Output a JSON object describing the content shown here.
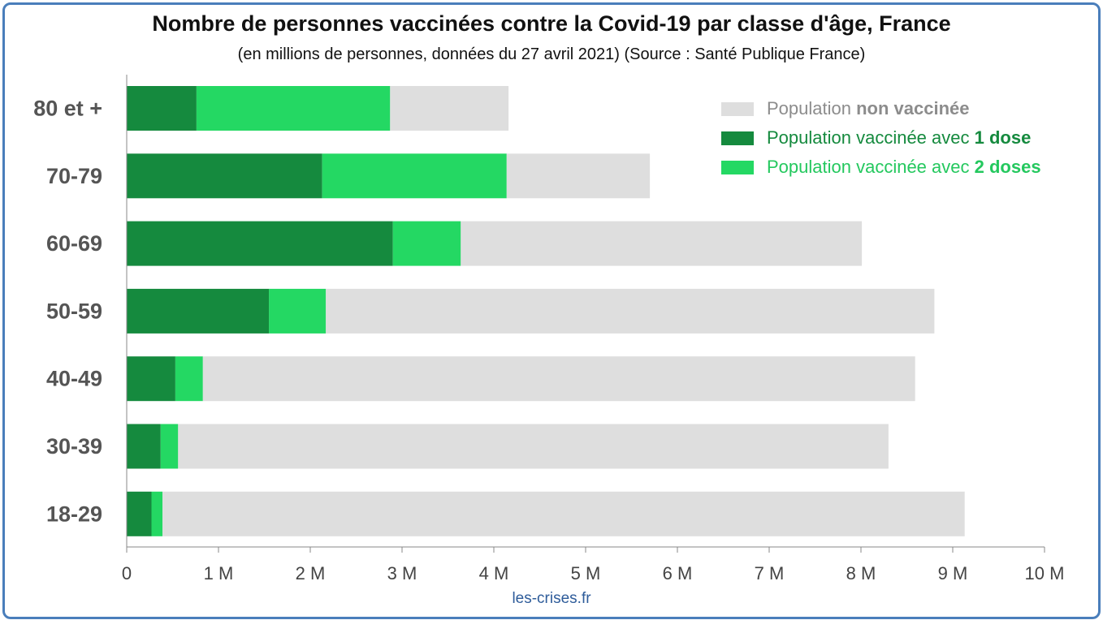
{
  "title": "Nombre de personnes vaccinées contre la Covid-19 par classe d'âge, France",
  "subtitle": "(en millions de personnes, données du 27 avril 2021) (Source : Santé Publique France)",
  "source": "les-crises.fr",
  "colors": {
    "one_dose": "#158a3e",
    "two_doses": "#24d863",
    "unvaccinated": "#dedede",
    "axis": "#888888",
    "category_text": "#555555",
    "legend_unvaccinated_text": "#8c8c8c",
    "legend_one_dose_text": "#158a3e",
    "legend_two_doses_text": "#24c85e"
  },
  "legend": [
    {
      "key": "unvaccinated",
      "prefix": "Population ",
      "emphasis": "non vaccinée"
    },
    {
      "key": "one_dose",
      "prefix": "Population vaccinée avec ",
      "emphasis": "1 dose"
    },
    {
      "key": "two_doses",
      "prefix": "Population vaccinée avec ",
      "emphasis": "2 doses"
    }
  ],
  "chart_data": {
    "type": "bar",
    "orientation": "horizontal",
    "stacked": true,
    "categories": [
      "80 et +",
      "70-79",
      "60-69",
      "50-59",
      "40-49",
      "30-39",
      "18-29"
    ],
    "series": [
      {
        "name": "Population vaccinée avec 1 dose",
        "key": "one_dose",
        "values": [
          0.76,
          2.13,
          2.9,
          1.55,
          0.53,
          0.37,
          0.27
        ]
      },
      {
        "name": "Population vaccinée avec 2 doses",
        "key": "two_doses",
        "values": [
          2.11,
          2.01,
          0.74,
          0.62,
          0.3,
          0.19,
          0.12
        ]
      },
      {
        "name": "Population non vaccinée",
        "key": "unvaccinated",
        "values": [
          1.29,
          1.56,
          4.37,
          6.63,
          7.76,
          7.74,
          8.74
        ]
      }
    ],
    "xlim": [
      0,
      10
    ],
    "xticks": [
      0,
      1,
      2,
      3,
      4,
      5,
      6,
      7,
      8,
      9,
      10
    ],
    "xtick_labels": [
      "0",
      "1 M",
      "2 M",
      "3 M",
      "4 M",
      "5 M",
      "6 M",
      "7 M",
      "8 M",
      "9 M",
      "10 M"
    ],
    "xlabel": "",
    "ylabel": "",
    "grid": false,
    "legend_position": "top-right"
  }
}
